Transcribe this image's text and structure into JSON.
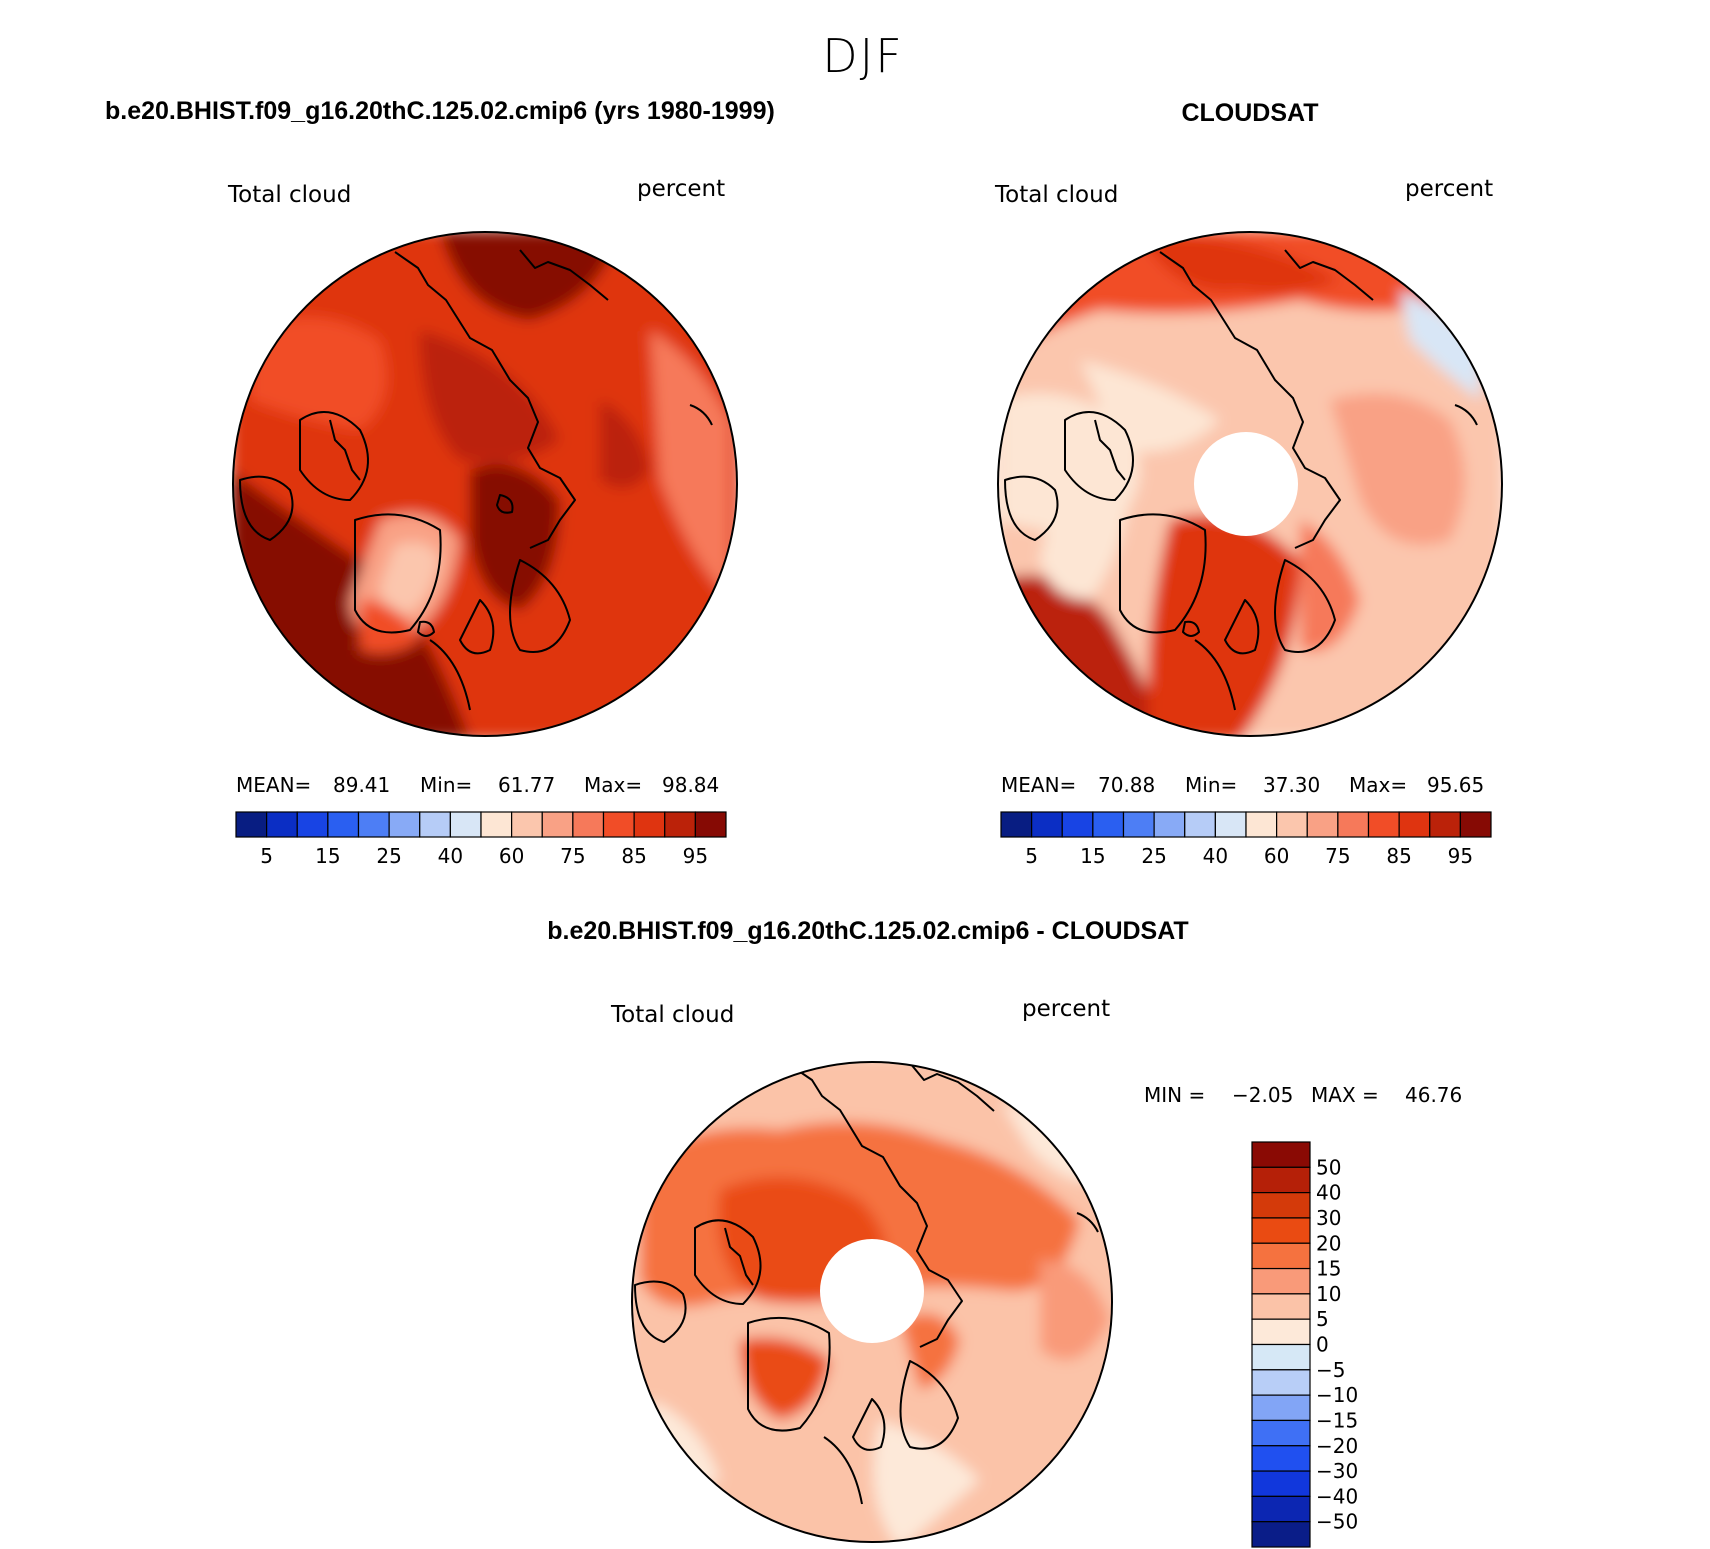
{
  "figure": {
    "season_title": "DJF"
  },
  "colors": {
    "abs_levels": [
      "#081d82",
      "#0b2ec4",
      "#1844e4",
      "#2a5ff1",
      "#4d7ef5",
      "#88aaf6",
      "#b6ccf7",
      "#d8e6f6",
      "#fde6d4",
      "#fbc6ad",
      "#f9a185",
      "#f6795a",
      "#f14d27",
      "#df3410",
      "#bb2209",
      "#860a04"
    ],
    "diff_levels": [
      "#0a1d88",
      "#0c26b2",
      "#1137dc",
      "#2050f0",
      "#3f70f5",
      "#82a5f6",
      "#b8cef7",
      "#d6e8f6",
      "#fde9d9",
      "#fbc3a8",
      "#f99a79",
      "#f5723f",
      "#ea4b12",
      "#d43a0a",
      "#b52008",
      "#8a0a04"
    ]
  },
  "panels": [
    {
      "title": "b.e20.BHIST.f09_g16.20thC.125.02.cmip6 (yrs 1980-1999)",
      "variable": "Total cloud",
      "units": "percent",
      "stats": {
        "mean_label": "MEAN=",
        "mean": "89.41",
        "min_label": "Min=",
        "min": "61.77",
        "max_label": "Max=",
        "max": "98.84"
      },
      "colorbar_ticks": [
        "5",
        "15",
        "25",
        "40",
        "60",
        "75",
        "85",
        "95"
      ]
    },
    {
      "title": "CLOUDSAT",
      "variable": "Total cloud",
      "units": "percent",
      "stats": {
        "mean_label": "MEAN=",
        "mean": "70.88",
        "min_label": "Min=",
        "min": "37.30",
        "max_label": "Max=",
        "max": "95.65"
      },
      "colorbar_ticks": [
        "5",
        "15",
        "25",
        "40",
        "60",
        "75",
        "85",
        "95"
      ]
    },
    {
      "title": "b.e20.BHIST.f09_g16.20thC.125.02.cmip6 - CLOUDSAT",
      "variable": "Total cloud",
      "units": "percent",
      "stats": {
        "min_label": "MIN =",
        "min": "−2.05",
        "max_label": "MAX =",
        "max": "46.76"
      },
      "colorbar_ticks": [
        "50",
        "40",
        "30",
        "20",
        "15",
        "10",
        "5",
        "0",
        "−5",
        "−10",
        "−15",
        "−20",
        "−30",
        "−40",
        "−50"
      ]
    }
  ]
}
